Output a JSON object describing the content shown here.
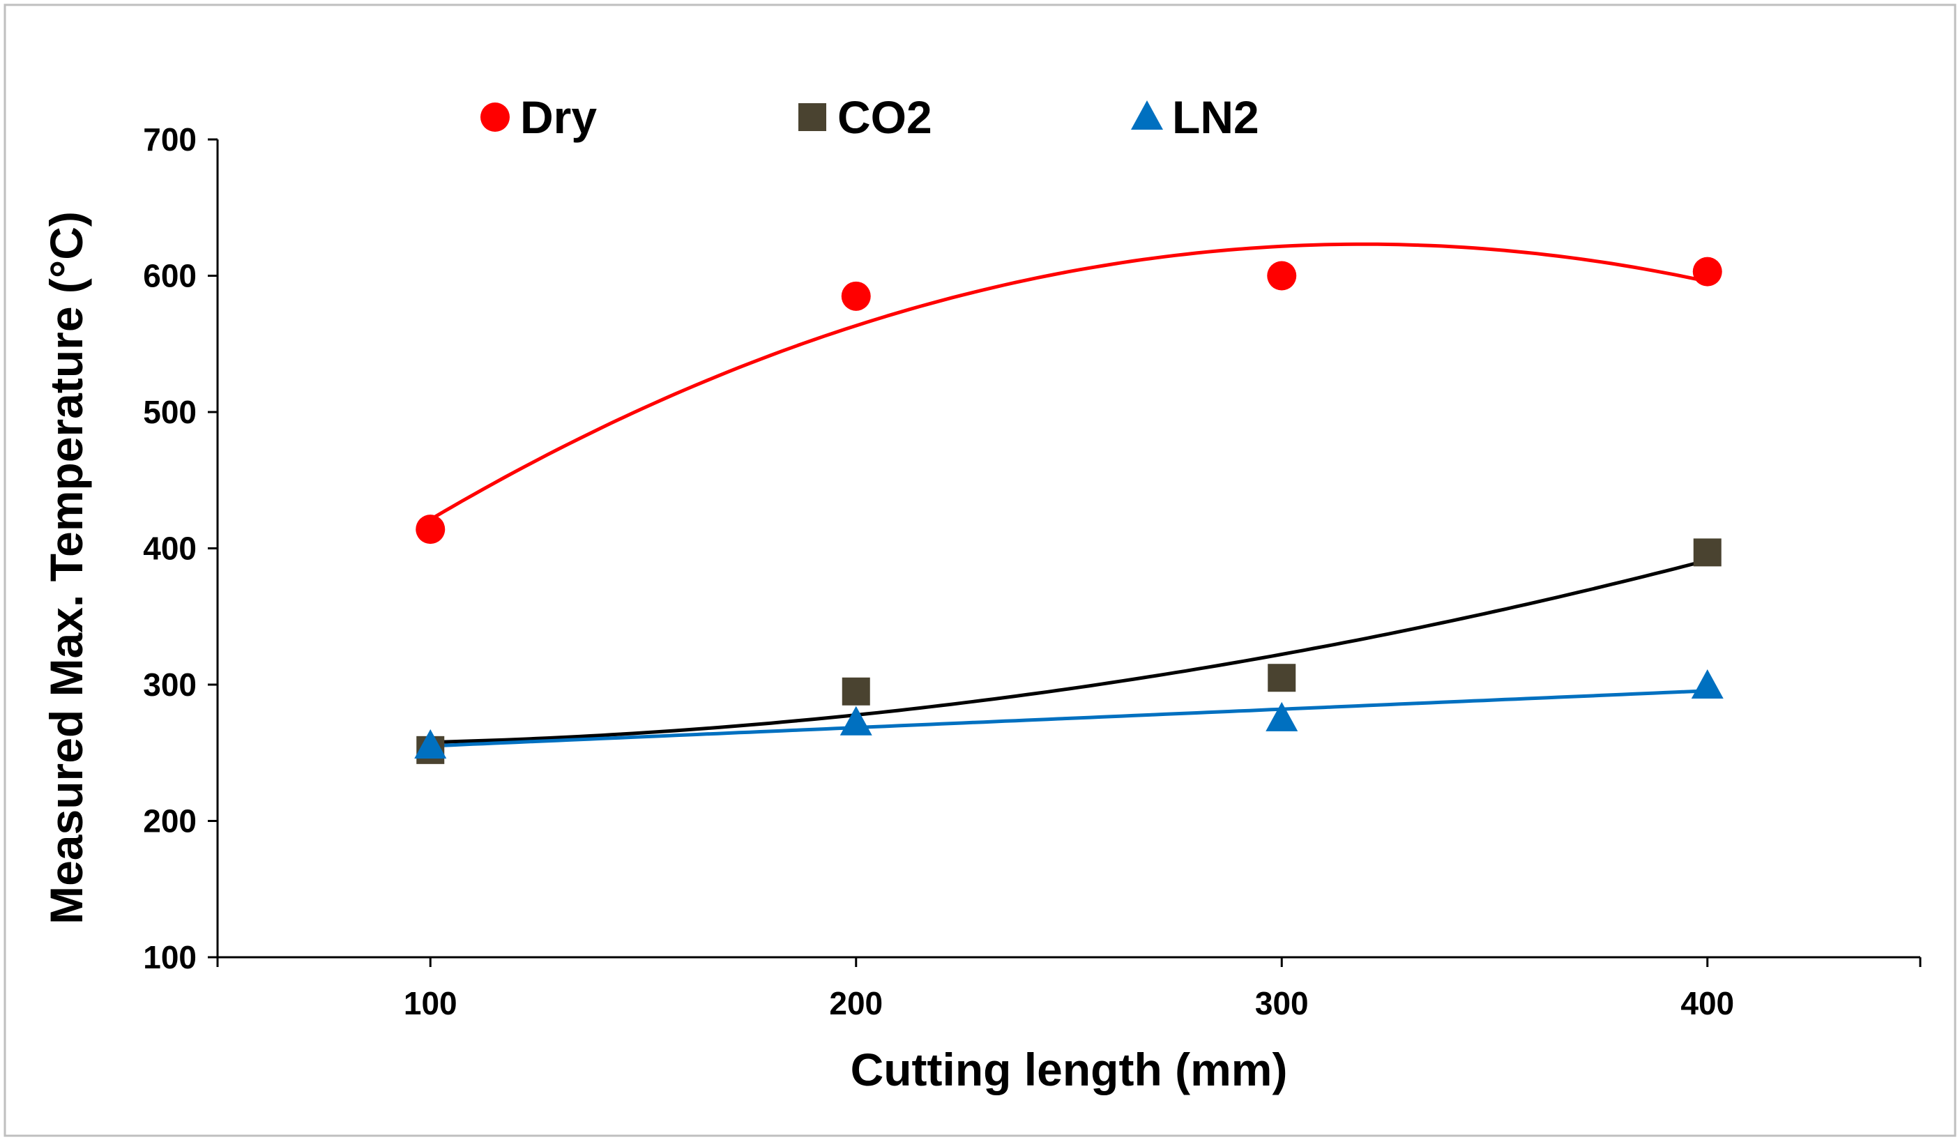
{
  "chart_data": {
    "type": "scatter",
    "title": "",
    "xlabel": "Cutting length (mm)",
    "ylabel": "Measured Max. Temperature (°C)",
    "xlim": [
      50,
      450
    ],
    "ylim": [
      100,
      700
    ],
    "xticks": [
      100,
      200,
      300,
      400
    ],
    "yticks": [
      100,
      200,
      300,
      400,
      500,
      600,
      700
    ],
    "grid": false,
    "legend_position": "top",
    "series": [
      {
        "name": "Dry",
        "marker": "circle",
        "color": "#ff0000",
        "trend_color": "#ff0000",
        "trend": "polynomial-2",
        "x": [
          100,
          200,
          300,
          400
        ],
        "y": [
          414,
          585,
          600,
          603
        ]
      },
      {
        "name": "CO2",
        "marker": "square",
        "color": "#4a4330",
        "trend_color": "#000000",
        "trend": "polynomial-2",
        "x": [
          100,
          200,
          300,
          400
        ],
        "y": [
          252,
          295,
          305,
          397
        ]
      },
      {
        "name": "LN2",
        "marker": "triangle",
        "color": "#0070c0",
        "trend_color": "#0070c0",
        "trend": "linear",
        "x": [
          100,
          200,
          300,
          400
        ],
        "y": [
          255,
          272,
          275,
          299
        ]
      }
    ]
  }
}
